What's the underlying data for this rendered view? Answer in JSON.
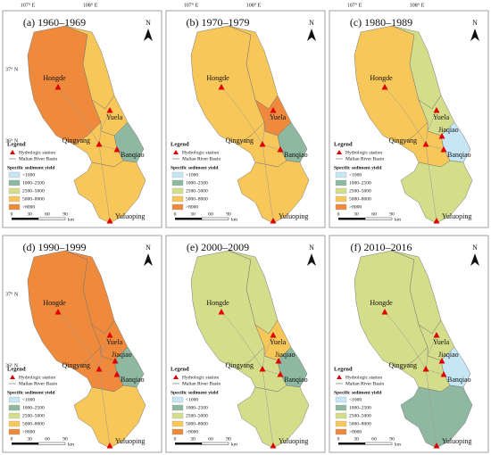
{
  "lon_labels": [
    "107° E",
    "108° E"
  ],
  "lat_labels": [
    "37° N",
    "36° N"
  ],
  "north": "N",
  "legend": {
    "title": "Legend",
    "station": "Hydrologic station",
    "basin": "Malian River Basin",
    "yield_title": "Specific sediment yield",
    "classes": [
      {
        "label": "<1000",
        "color": "#c6e6f5"
      },
      {
        "label": "1000–2500",
        "color": "#8fb8a0"
      },
      {
        "label": "2500–5000",
        "color": "#d4de8a"
      },
      {
        "label": "5000–8000",
        "color": "#f8c75a"
      },
      {
        "label": ">8000",
        "color": "#ef8a3c"
      }
    ]
  },
  "scale": {
    "ticks": [
      0,
      30,
      60,
      90
    ],
    "unit": "km"
  },
  "panels": [
    {
      "title": "(a) 1960–1969",
      "stations": [
        "Hongde",
        "Yuela",
        "Qingyang",
        "Banqiao",
        "Yuluoping"
      ],
      "zone_colors": [
        "#ef8a3c",
        "#f8c75a",
        "#f8c75a",
        "#8fb8a0",
        "#f8c75a",
        "#f8c75a"
      ]
    },
    {
      "title": "(b) 1970–1979",
      "stations": [
        "Hongde",
        "Yuela",
        "Qingyang",
        "Banqiao",
        "Yuluoping"
      ],
      "zone_colors": [
        "#f8c75a",
        "#f8c75a",
        "#ef8a3c",
        "#8fb8a0",
        "#f8c75a",
        "#f8c75a"
      ]
    },
    {
      "title": "(c) 1980–1989",
      "stations": [
        "Hongde",
        "Yuela",
        "Qingyang",
        "Banqiao",
        "Yuluoping",
        "Jiaqiao"
      ],
      "zone_colors": [
        "#f8c75a",
        "#d4de8a",
        "#d4de8a",
        "#c6e6f5",
        "#f8c75a",
        "#d4de8a"
      ]
    },
    {
      "title": "(d) 1990–1999",
      "stations": [
        "Hongde",
        "Yuela",
        "Qingyang",
        "Banqiao",
        "Yuluoping",
        "Jiaqiao"
      ],
      "zone_colors": [
        "#ef8a3c",
        "#ef8a3c",
        "#ef8a3c",
        "#8fb8a0",
        "#ef8a3c",
        "#f8c75a"
      ]
    },
    {
      "title": "(e) 2000–2009",
      "stations": [
        "Hongde",
        "Yuela",
        "Qingyang",
        "Banqiao",
        "Yuluoping",
        "Jiaqiao"
      ],
      "zone_colors": [
        "#d4de8a",
        "#d4de8a",
        "#f8c75a",
        "#8fb8a0",
        "#d4de8a",
        "#d4de8a"
      ]
    },
    {
      "title": "(f) 2010–2016",
      "stations": [
        "Hongde",
        "Yuela",
        "Qingyang",
        "Banqiao",
        "Yuluoping",
        "Jiaqiao"
      ],
      "zone_colors": [
        "#d4de8a",
        "#d4de8a",
        "#d4de8a",
        "#c6e6f5",
        "#d4de8a",
        "#8fb8a0"
      ]
    }
  ]
}
